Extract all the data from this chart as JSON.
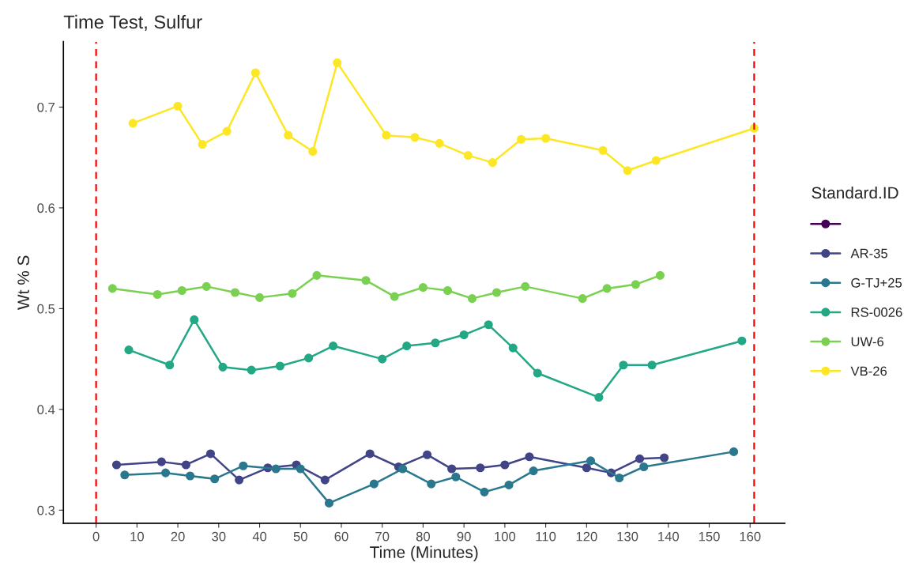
{
  "chart_data": {
    "type": "line",
    "title": "Time Test, Sulfur",
    "xlabel": "Time (Minutes)",
    "ylabel": "Wt % S",
    "legend_title": "Standard.ID",
    "xlim": [
      -8,
      168.5
    ],
    "xticks": [
      0,
      10,
      20,
      30,
      40,
      50,
      60,
      70,
      80,
      90,
      100,
      110,
      120,
      130,
      140,
      150,
      160
    ],
    "ylim": [
      0.287,
      0.765
    ],
    "yticks": [
      0.3,
      0.4,
      0.5,
      0.6,
      0.7
    ],
    "grid": false,
    "legend": "right",
    "marker": "circle",
    "line_style": "solid",
    "ref_lines": [
      {
        "axis": "x",
        "value": 0,
        "color": "#ff0000",
        "line_style": "dashed"
      },
      {
        "axis": "x",
        "value": 161,
        "color": "#ff0000",
        "line_style": "dashed"
      }
    ],
    "series": [
      {
        "color": "#440154"
      },
      {
        "name": "AR-35",
        "color": "#414487",
        "x": [
          5,
          16,
          22,
          28,
          35,
          42,
          49,
          56,
          67,
          74,
          81,
          87,
          94,
          100,
          106,
          120,
          126,
          133,
          139
        ],
        "values": [
          0.345,
          0.348,
          0.345,
          0.356,
          0.33,
          0.342,
          0.345,
          0.33,
          0.356,
          0.343,
          0.355,
          0.341,
          0.342,
          0.345,
          0.353,
          0.342,
          0.337,
          0.351,
          0.352
        ]
      },
      {
        "name": "G-TJ+25",
        "color": "#2a788e",
        "x": [
          7,
          17,
          23,
          29,
          36,
          44,
          50,
          57,
          68,
          75,
          82,
          88,
          95,
          101,
          107,
          121,
          128,
          134,
          156
        ],
        "values": [
          0.335,
          0.337,
          0.334,
          0.331,
          0.344,
          0.341,
          0.341,
          0.307,
          0.326,
          0.341,
          0.326,
          0.333,
          0.318,
          0.325,
          0.339,
          0.349,
          0.332,
          0.343,
          0.358
        ]
      },
      {
        "name": "RS-0026",
        "color": "#22a884",
        "x": [
          8,
          18,
          24,
          31,
          38,
          45,
          52,
          58,
          70,
          76,
          83,
          90,
          96,
          102,
          108,
          123,
          129,
          136,
          158
        ],
        "values": [
          0.459,
          0.444,
          0.489,
          0.442,
          0.439,
          0.443,
          0.451,
          0.463,
          0.45,
          0.463,
          0.466,
          0.474,
          0.484,
          0.461,
          0.436,
          0.412,
          0.444,
          0.444,
          0.468
        ]
      },
      {
        "name": "UW-6",
        "color": "#7ad151",
        "x": [
          4,
          15,
          21,
          27,
          34,
          40,
          48,
          54,
          66,
          73,
          80,
          86,
          92,
          98,
          105,
          119,
          125,
          132,
          138
        ],
        "values": [
          0.52,
          0.514,
          0.518,
          0.522,
          0.516,
          0.511,
          0.515,
          0.533,
          0.528,
          0.512,
          0.521,
          0.518,
          0.51,
          0.516,
          0.522,
          0.51,
          0.52,
          0.524,
          0.533
        ]
      },
      {
        "name": "VB-26",
        "color": "#fde725",
        "x": [
          9,
          20,
          26,
          32,
          39,
          47,
          53,
          59,
          71,
          78,
          84,
          91,
          97,
          104,
          110,
          124,
          130,
          137,
          161
        ],
        "values": [
          0.684,
          0.701,
          0.663,
          0.676,
          0.734,
          0.672,
          0.656,
          0.744,
          0.672,
          0.67,
          0.664,
          0.652,
          0.645,
          0.668,
          0.669,
          0.657,
          0.637,
          0.647,
          0.679
        ]
      }
    ]
  }
}
